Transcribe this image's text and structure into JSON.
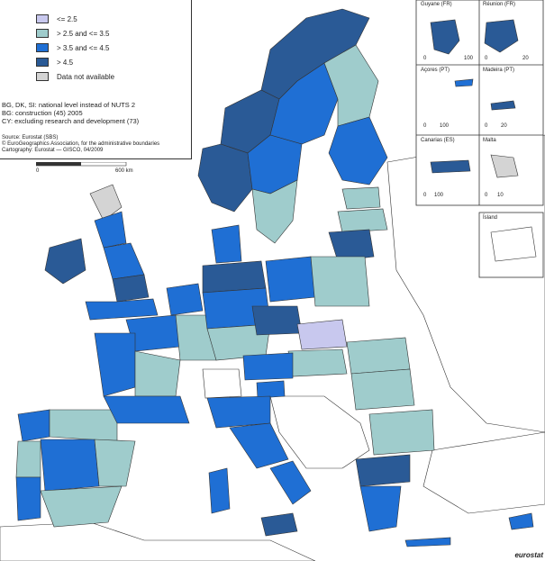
{
  "legend": {
    "items": [
      {
        "label": "<= 2.5",
        "color": "#c8c8ee"
      },
      {
        "label": "> 2.5  and <= 3.5",
        "color": "#9fcccc"
      },
      {
        "label": "> 3.5 and <= 4.5",
        "color": "#1f6fd4"
      },
      {
        "label": "> 4.5",
        "color": "#2a5a96"
      },
      {
        "label": "Data not available",
        "color": "#d4d4d4"
      }
    ]
  },
  "notes": [
    "BG, DK, SI: national level instead of NUTS 2",
    "BG: construction (45) 2005",
    "CY: excluding research and development (73)"
  ],
  "source": [
    "Source: Eurostat (SBS)",
    "© EuroGeographics Association, for the administrative boundaries",
    "Cartography: Eurostat — GISCO, 04/2009"
  ],
  "scale": {
    "start": "0",
    "end": "600 km"
  },
  "insets": [
    {
      "title": "Guyane (FR)",
      "scale_a": "0",
      "scale_b": "100"
    },
    {
      "title": "Réunion (FR)",
      "scale_a": "0",
      "scale_b": "20"
    },
    {
      "title": "Açores (PT)",
      "scale_a": "0",
      "scale_b": "100"
    },
    {
      "title": "Madeira (PT)",
      "scale_a": "0",
      "scale_b": "20"
    },
    {
      "title": "Canarias (ES)",
      "scale_a": "0",
      "scale_b": "100"
    },
    {
      "title": "Malta",
      "scale_a": "0",
      "scale_b": "10"
    },
    {
      "title": "Ísland",
      "scale_a": "",
      "scale_b": ""
    }
  ],
  "brand": "eurostat",
  "colors": {
    "sea": "#ffffff",
    "border": "#333333",
    "nodata": "#d4d4d4",
    "outside": "#ffffff"
  }
}
